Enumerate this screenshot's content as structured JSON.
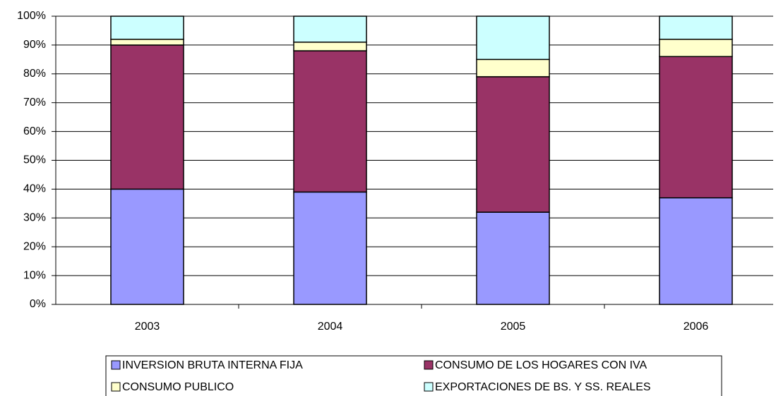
{
  "chart_data": {
    "type": "stacked_bar",
    "categories": [
      "2003",
      "2004",
      "2005",
      "2006"
    ],
    "series": [
      {
        "name": "INVERSION BRUTA INTERNA FIJA",
        "color": "#9999ff",
        "values": [
          40,
          39,
          32,
          37
        ]
      },
      {
        "name": "CONSUMO DE LOS HOGARES CON IVA",
        "color": "#993366",
        "values": [
          50,
          49,
          47,
          49
        ]
      },
      {
        "name": "CONSUMO PUBLICO",
        "color": "#ffffcc",
        "values": [
          2,
          3,
          6,
          6
        ]
      },
      {
        "name": "EXPORTACIONES DE BS. Y SS. REALES",
        "color": "#ccffff",
        "values": [
          8,
          9,
          15,
          8
        ]
      }
    ],
    "ylim": [
      0,
      100
    ],
    "yticks": [
      {
        "value": 0,
        "label": "0%"
      },
      {
        "value": 10,
        "label": "10%"
      },
      {
        "value": 20,
        "label": "20%"
      },
      {
        "value": 30,
        "label": "30%"
      },
      {
        "value": 40,
        "label": "40%"
      },
      {
        "value": 50,
        "label": "50%"
      },
      {
        "value": 60,
        "label": "60%"
      },
      {
        "value": 70,
        "label": "70%"
      },
      {
        "value": 80,
        "label": "80%"
      },
      {
        "value": 90,
        "label": "90%"
      },
      {
        "value": 100,
        "label": "100%"
      }
    ],
    "grid": true
  }
}
